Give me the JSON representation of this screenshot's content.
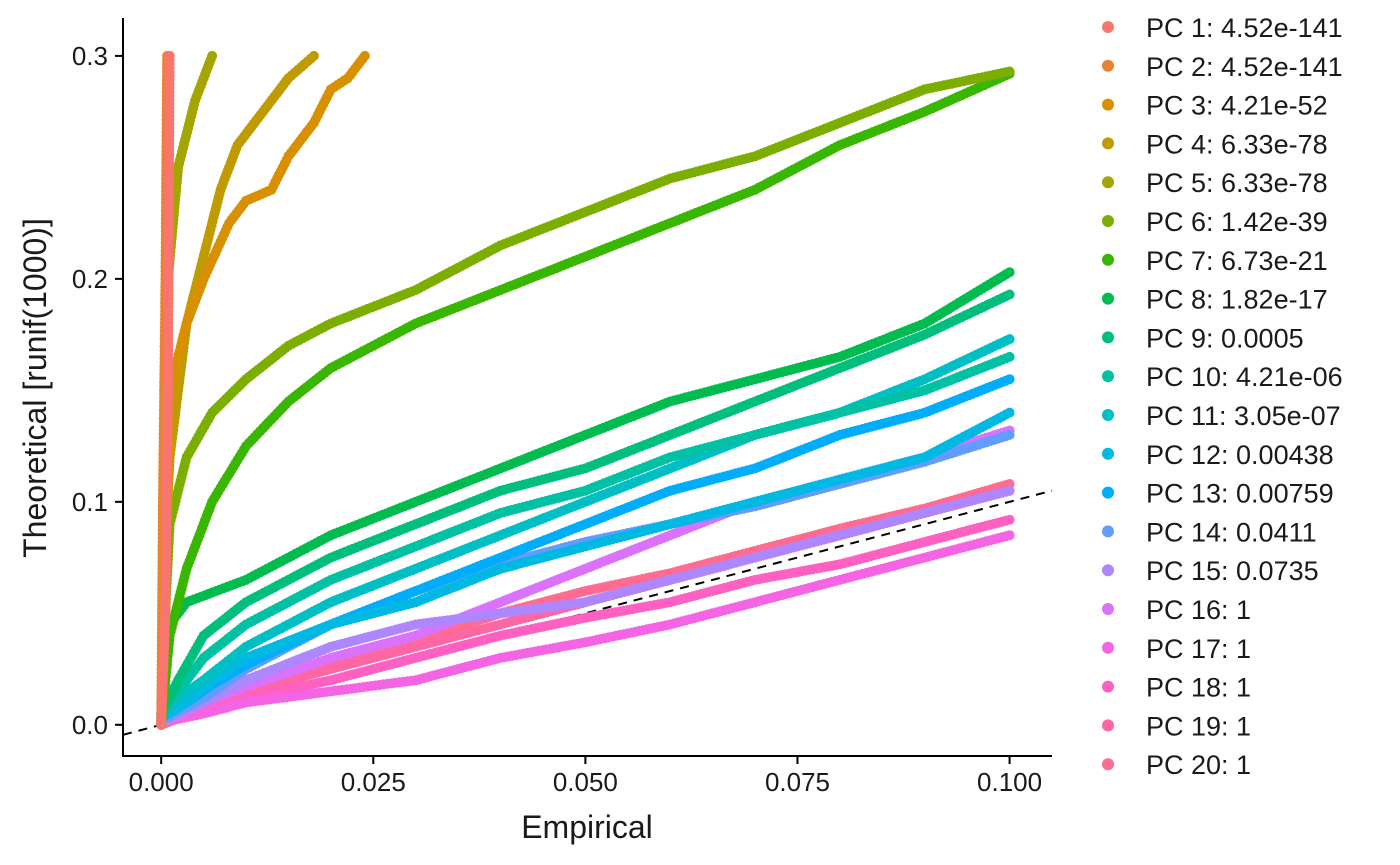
{
  "chart_data": {
    "type": "scatter",
    "xlabel": "Empirical",
    "ylabel": "Theoretical [runif(1000)]",
    "xlim": [
      -0.0045,
      0.105
    ],
    "ylim": [
      -0.014,
      0.317
    ],
    "x_ticks": [
      0.0,
      0.025,
      0.05,
      0.075,
      0.1
    ],
    "x_tick_labels": [
      "0.000",
      "0.025",
      "0.050",
      "0.075",
      "0.100"
    ],
    "y_ticks": [
      0.0,
      0.1,
      0.2,
      0.3
    ],
    "y_tick_labels": [
      "0.0",
      "0.1",
      "0.2",
      "0.3"
    ],
    "grid": false,
    "legend_position": "right",
    "reference_line": {
      "style": "dashed",
      "color": "#000000",
      "slope": 1,
      "intercept": 0
    },
    "series": [
      {
        "name": "PC 1: 4.52e-141",
        "color": "#F8766D",
        "points": [
          [
            0,
            0
          ],
          [
            0.0005,
            0.05
          ],
          [
            0.0008,
            0.15
          ],
          [
            0.001,
            0.3
          ]
        ]
      },
      {
        "name": "PC 2: 4.52e-141",
        "color": "#EA8331",
        "points": [
          [
            0,
            0
          ],
          [
            0.0002,
            0.1
          ],
          [
            0.0005,
            0.2
          ],
          [
            0.0007,
            0.3
          ]
        ]
      },
      {
        "name": "PC 3: 4.21e-52",
        "color": "#D89000",
        "points": [
          [
            0,
            0
          ],
          [
            0.0005,
            0.08
          ],
          [
            0.001,
            0.15
          ],
          [
            0.003,
            0.18
          ],
          [
            0.005,
            0.2
          ],
          [
            0.008,
            0.225
          ],
          [
            0.01,
            0.235
          ],
          [
            0.013,
            0.24
          ],
          [
            0.015,
            0.255
          ],
          [
            0.018,
            0.27
          ],
          [
            0.02,
            0.285
          ],
          [
            0.022,
            0.29
          ],
          [
            0.024,
            0.3
          ]
        ]
      },
      {
        "name": "PC 4: 6.33e-78",
        "color": "#C09B00",
        "points": [
          [
            0,
            0
          ],
          [
            0.0005,
            0.08
          ],
          [
            0.001,
            0.12
          ],
          [
            0.002,
            0.15
          ],
          [
            0.003,
            0.18
          ],
          [
            0.005,
            0.21
          ],
          [
            0.007,
            0.24
          ],
          [
            0.009,
            0.26
          ],
          [
            0.012,
            0.275
          ],
          [
            0.015,
            0.29
          ],
          [
            0.018,
            0.3
          ]
        ]
      },
      {
        "name": "PC 5: 6.33e-78",
        "color": "#A3A500",
        "points": [
          [
            0,
            0
          ],
          [
            0.0003,
            0.1
          ],
          [
            0.0008,
            0.2
          ],
          [
            0.002,
            0.25
          ],
          [
            0.004,
            0.28
          ],
          [
            0.006,
            0.3
          ]
        ]
      },
      {
        "name": "PC 6: 1.42e-39",
        "color": "#7CAE00",
        "points": [
          [
            0,
            0
          ],
          [
            0.0003,
            0.03
          ],
          [
            0.0006,
            0.06
          ],
          [
            0.001,
            0.09
          ],
          [
            0.003,
            0.12
          ],
          [
            0.006,
            0.14
          ],
          [
            0.01,
            0.155
          ],
          [
            0.015,
            0.17
          ],
          [
            0.02,
            0.18
          ],
          [
            0.03,
            0.195
          ],
          [
            0.04,
            0.215
          ],
          [
            0.05,
            0.23
          ],
          [
            0.06,
            0.245
          ],
          [
            0.07,
            0.255
          ],
          [
            0.08,
            0.27
          ],
          [
            0.09,
            0.285
          ],
          [
            0.1,
            0.293
          ]
        ]
      },
      {
        "name": "PC 7: 6.73e-21",
        "color": "#39B600",
        "points": [
          [
            0,
            0
          ],
          [
            0.0005,
            0.02
          ],
          [
            0.001,
            0.04
          ],
          [
            0.003,
            0.07
          ],
          [
            0.006,
            0.1
          ],
          [
            0.01,
            0.125
          ],
          [
            0.015,
            0.145
          ],
          [
            0.02,
            0.16
          ],
          [
            0.025,
            0.17
          ],
          [
            0.03,
            0.18
          ],
          [
            0.04,
            0.195
          ],
          [
            0.05,
            0.21
          ],
          [
            0.06,
            0.225
          ],
          [
            0.07,
            0.24
          ],
          [
            0.08,
            0.26
          ],
          [
            0.09,
            0.275
          ],
          [
            0.1,
            0.292
          ]
        ]
      },
      {
        "name": "PC 8: 1.82e-17",
        "color": "#00BB4E",
        "points": [
          [
            0,
            0.01
          ],
          [
            0.0005,
            0.03
          ],
          [
            0.001,
            0.045
          ],
          [
            0.003,
            0.055
          ],
          [
            0.01,
            0.065
          ],
          [
            0.02,
            0.085
          ],
          [
            0.03,
            0.1
          ],
          [
            0.04,
            0.115
          ],
          [
            0.05,
            0.13
          ],
          [
            0.06,
            0.145
          ],
          [
            0.07,
            0.155
          ],
          [
            0.08,
            0.165
          ],
          [
            0.09,
            0.18
          ],
          [
            0.1,
            0.203
          ]
        ]
      },
      {
        "name": "PC 9: 0.0005",
        "color": "#00BF7D",
        "points": [
          [
            0,
            0.005
          ],
          [
            0.002,
            0.02
          ],
          [
            0.005,
            0.04
          ],
          [
            0.01,
            0.055
          ],
          [
            0.02,
            0.075
          ],
          [
            0.03,
            0.09
          ],
          [
            0.04,
            0.105
          ],
          [
            0.05,
            0.115
          ],
          [
            0.06,
            0.13
          ],
          [
            0.07,
            0.145
          ],
          [
            0.08,
            0.16
          ],
          [
            0.09,
            0.175
          ],
          [
            0.1,
            0.193
          ]
        ]
      },
      {
        "name": "PC 10: 4.21e-06",
        "color": "#00C1A3",
        "points": [
          [
            0,
            0.005
          ],
          [
            0.002,
            0.015
          ],
          [
            0.005,
            0.03
          ],
          [
            0.01,
            0.045
          ],
          [
            0.02,
            0.065
          ],
          [
            0.03,
            0.08
          ],
          [
            0.04,
            0.095
          ],
          [
            0.05,
            0.105
          ],
          [
            0.06,
            0.12
          ],
          [
            0.07,
            0.13
          ],
          [
            0.08,
            0.14
          ],
          [
            0.09,
            0.15
          ],
          [
            0.1,
            0.165
          ]
        ]
      },
      {
        "name": "PC 11: 3.05e-07",
        "color": "#00BFC4",
        "points": [
          [
            0,
            0.005
          ],
          [
            0.002,
            0.012
          ],
          [
            0.005,
            0.02
          ],
          [
            0.01,
            0.035
          ],
          [
            0.02,
            0.055
          ],
          [
            0.03,
            0.07
          ],
          [
            0.04,
            0.085
          ],
          [
            0.05,
            0.1
          ],
          [
            0.06,
            0.115
          ],
          [
            0.07,
            0.13
          ],
          [
            0.08,
            0.14
          ],
          [
            0.09,
            0.155
          ],
          [
            0.1,
            0.173
          ]
        ]
      },
      {
        "name": "PC 12: 0.00438",
        "color": "#00B9E3",
        "points": [
          [
            0,
            0.003
          ],
          [
            0.003,
            0.01
          ],
          [
            0.006,
            0.02
          ],
          [
            0.01,
            0.03
          ],
          [
            0.02,
            0.045
          ],
          [
            0.03,
            0.055
          ],
          [
            0.04,
            0.07
          ],
          [
            0.05,
            0.08
          ],
          [
            0.06,
            0.09
          ],
          [
            0.07,
            0.1
          ],
          [
            0.08,
            0.11
          ],
          [
            0.09,
            0.12
          ],
          [
            0.1,
            0.14
          ]
        ]
      },
      {
        "name": "PC 13: 0.00759",
        "color": "#00ADFA",
        "points": [
          [
            0,
            0.003
          ],
          [
            0.003,
            0.01
          ],
          [
            0.006,
            0.018
          ],
          [
            0.01,
            0.027
          ],
          [
            0.02,
            0.045
          ],
          [
            0.03,
            0.06
          ],
          [
            0.04,
            0.075
          ],
          [
            0.05,
            0.09
          ],
          [
            0.06,
            0.105
          ],
          [
            0.07,
            0.115
          ],
          [
            0.08,
            0.13
          ],
          [
            0.09,
            0.14
          ],
          [
            0.1,
            0.155
          ]
        ]
      },
      {
        "name": "PC 14: 0.0411",
        "color": "#619CFF",
        "points": [
          [
            0,
            0.002
          ],
          [
            0.005,
            0.012
          ],
          [
            0.01,
            0.025
          ],
          [
            0.02,
            0.045
          ],
          [
            0.03,
            0.06
          ],
          [
            0.04,
            0.072
          ],
          [
            0.05,
            0.082
          ],
          [
            0.06,
            0.09
          ],
          [
            0.07,
            0.098
          ],
          [
            0.08,
            0.108
          ],
          [
            0.09,
            0.118
          ],
          [
            0.1,
            0.13
          ]
        ]
      },
      {
        "name": "PC 15: 0.0735",
        "color": "#AE87FF",
        "points": [
          [
            0,
            0.001
          ],
          [
            0.005,
            0.01
          ],
          [
            0.01,
            0.02
          ],
          [
            0.02,
            0.035
          ],
          [
            0.03,
            0.045
          ],
          [
            0.04,
            0.05
          ],
          [
            0.05,
            0.055
          ],
          [
            0.06,
            0.065
          ],
          [
            0.07,
            0.075
          ],
          [
            0.08,
            0.085
          ],
          [
            0.09,
            0.095
          ],
          [
            0.1,
            0.105
          ]
        ]
      },
      {
        "name": "PC 16: 1",
        "color": "#DB72FB",
        "points": [
          [
            0,
            0.001
          ],
          [
            0.005,
            0.01
          ],
          [
            0.01,
            0.017
          ],
          [
            0.02,
            0.03
          ],
          [
            0.03,
            0.04
          ],
          [
            0.04,
            0.055
          ],
          [
            0.05,
            0.07
          ],
          [
            0.06,
            0.085
          ],
          [
            0.07,
            0.1
          ],
          [
            0.08,
            0.11
          ],
          [
            0.09,
            0.12
          ],
          [
            0.1,
            0.132
          ]
        ]
      },
      {
        "name": "PC 17: 1",
        "color": "#F564E3",
        "points": [
          [
            0,
            0.001
          ],
          [
            0.005,
            0.005
          ],
          [
            0.01,
            0.01
          ],
          [
            0.02,
            0.015
          ],
          [
            0.03,
            0.02
          ],
          [
            0.04,
            0.03
          ],
          [
            0.05,
            0.037
          ],
          [
            0.06,
            0.045
          ],
          [
            0.07,
            0.055
          ],
          [
            0.08,
            0.065
          ],
          [
            0.09,
            0.075
          ],
          [
            0.1,
            0.085
          ]
        ]
      },
      {
        "name": "PC 18: 1",
        "color": "#FF61C3",
        "points": [
          [
            0,
            0.001
          ],
          [
            0.005,
            0.007
          ],
          [
            0.01,
            0.012
          ],
          [
            0.02,
            0.02
          ],
          [
            0.03,
            0.03
          ],
          [
            0.04,
            0.04
          ],
          [
            0.05,
            0.048
          ],
          [
            0.06,
            0.055
          ],
          [
            0.07,
            0.065
          ],
          [
            0.08,
            0.072
          ],
          [
            0.09,
            0.082
          ],
          [
            0.1,
            0.092
          ]
        ]
      },
      {
        "name": "PC 19: 1",
        "color": "#FF67A4",
        "points": [
          [
            0,
            0
          ],
          [
            0.005,
            0.007
          ],
          [
            0.01,
            0.015
          ],
          [
            0.02,
            0.025
          ],
          [
            0.03,
            0.035
          ],
          [
            0.04,
            0.045
          ],
          [
            0.05,
            0.055
          ],
          [
            0.06,
            0.065
          ],
          [
            0.07,
            0.075
          ],
          [
            0.08,
            0.085
          ],
          [
            0.09,
            0.095
          ],
          [
            0.1,
            0.105
          ]
        ]
      },
      {
        "name": "PC 20: 1",
        "color": "#FF6C91",
        "points": [
          [
            0,
            0
          ],
          [
            0.005,
            0.008
          ],
          [
            0.01,
            0.015
          ],
          [
            0.02,
            0.028
          ],
          [
            0.03,
            0.038
          ],
          [
            0.04,
            0.05
          ],
          [
            0.05,
            0.06
          ],
          [
            0.06,
            0.068
          ],
          [
            0.07,
            0.078
          ],
          [
            0.08,
            0.088
          ],
          [
            0.09,
            0.097
          ],
          [
            0.1,
            0.108
          ]
        ]
      }
    ]
  }
}
